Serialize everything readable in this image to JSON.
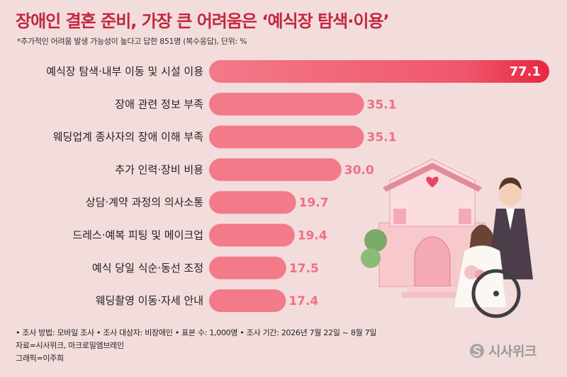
{
  "header": {
    "title": "장애인 결혼 준비, 가장 큰 어려움은 ‘예식장 탐색·이용’",
    "subtitle": "*추가적인 어려움 발생 가능성이 높다고 답한 851명 (복수응답),  단위: %"
  },
  "colors": {
    "bar": "#f27a89",
    "bar_top": "#e8263f",
    "title": "#c2273f",
    "value": "#ee7081",
    "background": "#f3dcdc"
  },
  "chart_data": {
    "type": "bar",
    "orientation": "horizontal",
    "title": "장애인 결혼 준비, 가장 큰 어려움은 ‘예식장 탐색·이용’",
    "unit": "%",
    "categories": [
      "예식장 탐색·내부 이동 및 시설 이용",
      "장애 관련 정보 부족",
      "웨딩업계 종사자의 장애 이해 부족",
      "추가 인력·장비 비용",
      "상담·계약 과정의 의사소통",
      "드레스·예복 피팅 및 메이크업",
      "예식 당일 식순·동선 조정",
      "웨딩촬영 이동·자세 안내"
    ],
    "values": [
      77.1,
      35.1,
      35.1,
      30.0,
      19.7,
      19.4,
      17.5,
      17.4
    ],
    "value_labels": [
      "77.1",
      "35.1",
      "35.1",
      "30.0",
      "19.7",
      "19.4",
      "17.5",
      "17.4"
    ],
    "xlim": [
      0,
      77.1
    ],
    "grid": false,
    "legend": "none"
  },
  "footer": {
    "line1": "• 조사 방법: 모바일 조사 • 조사 대상자: 비장애인 • 표본 수: 1,000명 • 조사 기간: 2026년 7월 22일 ~ 8월 7일",
    "line2": "자료=시사위크, 마크로밀엠브레인",
    "line3": "그래픽=이주희",
    "logo_text": "시사위크"
  },
  "icons": [
    "sisaweek-logo-icon",
    "wedding-hall-illustration",
    "wheelchair-couple-illustration"
  ]
}
